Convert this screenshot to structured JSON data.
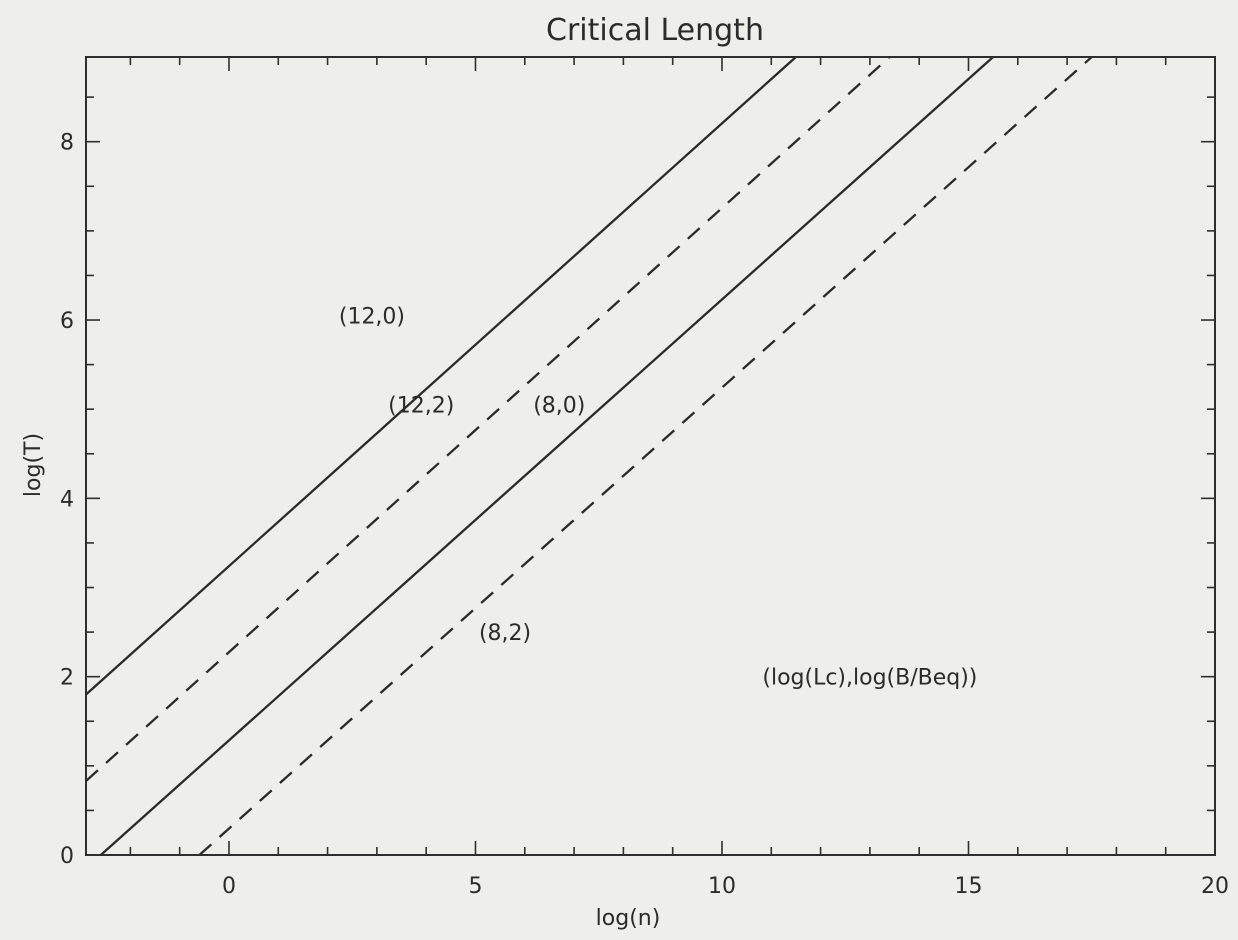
{
  "chart_data": {
    "type": "line",
    "title": "Critical Length",
    "xlabel": "log(n)",
    "ylabel": "log(T)",
    "xlim": [
      -2.9,
      20
    ],
    "ylim": [
      0,
      8.95
    ],
    "xticks": [
      0,
      5,
      10,
      15,
      20
    ],
    "yticks": [
      0,
      2,
      4,
      6,
      8
    ],
    "x_minor_step": 1,
    "y_minor_step": 0.5,
    "grid": false,
    "series": [
      {
        "name": "(12,0)",
        "style": "solid",
        "x": [
          -2.9,
          11.5
        ],
        "y": [
          1.8,
          8.95
        ]
      },
      {
        "name": "(12,2)",
        "style": "dashed",
        "x": [
          -2.9,
          13.4
        ],
        "y": [
          0.83,
          8.95
        ]
      },
      {
        "name": "(8,0)",
        "style": "solid",
        "x": [
          -2.6,
          15.5
        ],
        "y": [
          0.0,
          8.95
        ]
      },
      {
        "name": "(8,2)",
        "style": "dashed",
        "x": [
          -0.6,
          17.5
        ],
        "y": [
          0.0,
          8.95
        ]
      }
    ],
    "annotations": [
      {
        "text": "(12,0)",
        "x": 2.9,
        "y": 6.05
      },
      {
        "text": "(12,2)",
        "x": 3.9,
        "y": 5.05
      },
      {
        "text": "(8,0)",
        "x": 6.7,
        "y": 5.05
      },
      {
        "text": "(8,2)",
        "x": 5.6,
        "y": 2.5
      },
      {
        "text": "(log(Lc),log(B/Beq))",
        "x": 13.0,
        "y": 2.0
      }
    ]
  }
}
